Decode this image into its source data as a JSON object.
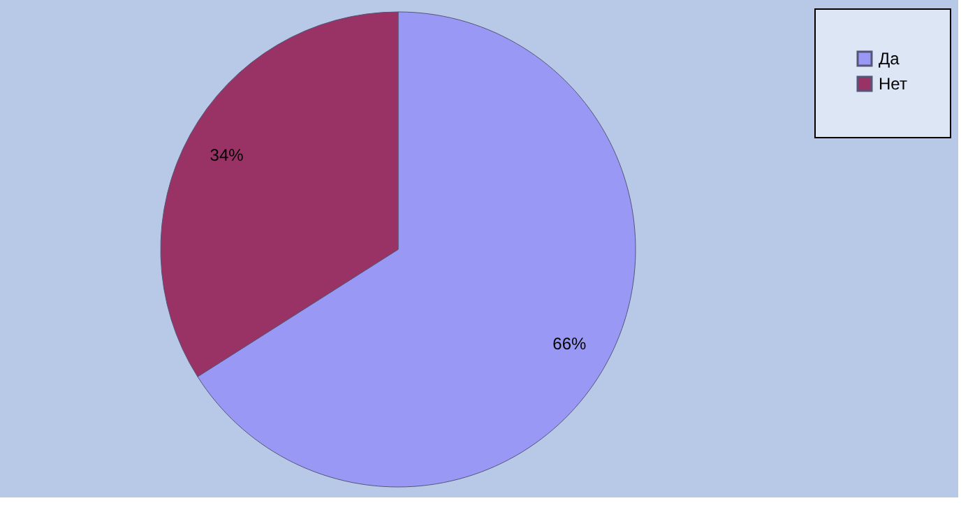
{
  "chart_data": {
    "type": "pie",
    "categories": [
      "Да",
      "Нет"
    ],
    "values": [
      66,
      34
    ],
    "colors": [
      "#9999f5",
      "#993366"
    ],
    "value_labels": [
      "66%",
      "34%"
    ],
    "legend": "right"
  }
}
